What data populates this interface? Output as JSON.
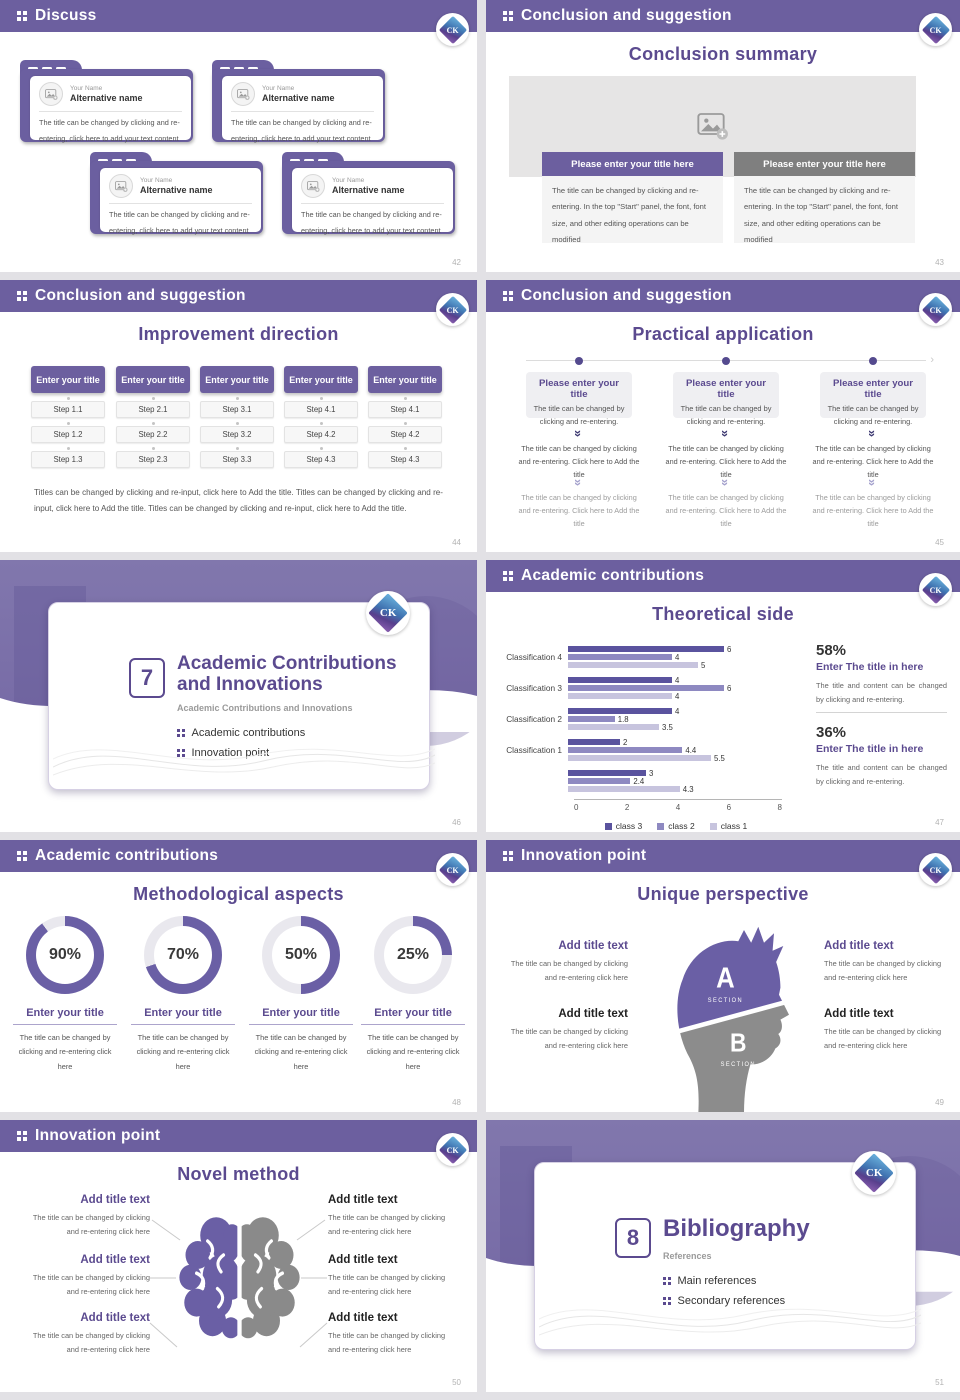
{
  "logo": {
    "text": "CK"
  },
  "colors": {
    "header_bg": "#6c5f9f",
    "accent": "#5b4a8f",
    "gray_bar": "#7f7f7f",
    "bar_class3": "#5a539e",
    "bar_class2": "#8e89c1",
    "bar_class1": "#c7c4de",
    "donut_fill": "#6a5fa5",
    "donut_track": "#e9e8ee"
  },
  "slides": {
    "discuss": {
      "header": "Discuss",
      "page": "42",
      "card": {
        "name_label": "Your Name",
        "alt_name": "Alternative name",
        "body": "The title can be changed by clicking and re-entering, click here to add your text content"
      }
    },
    "conclusion_summary": {
      "header": "Conclusion and suggestion",
      "title": "Conclusion summary",
      "page": "43",
      "bar_title": "Please enter your title here",
      "body": "The title can be changed by clicking and re-entering. In the top \"Start\" panel, the font, font size, and other editing operations can be modified"
    },
    "improvement": {
      "header": "Conclusion and suggestion",
      "title": "Improvement direction",
      "page": "44",
      "col_header": "Enter your title",
      "columns": [
        {
          "steps": [
            "Step 1.1",
            "Step 1.2",
            "Step 1.3"
          ]
        },
        {
          "steps": [
            "Step 2.1",
            "Step 2.2",
            "Step 2.3"
          ]
        },
        {
          "steps": [
            "Step 3.1",
            "Step 3.2",
            "Step 3.3"
          ]
        },
        {
          "steps": [
            "Step 4.1",
            "Step 4.2",
            "Step 4.3"
          ]
        },
        {
          "steps": [
            "Step 4.1",
            "Step 4.2",
            "Step 4.3"
          ]
        }
      ],
      "paragraph": "Titles can be changed by clicking and re-input, click here to Add the title. Titles can be changed by clicking and re-input, click here to Add the title. Titles can be changed by clicking and re-input, click here to Add the title."
    },
    "practical": {
      "header": "Conclusion and suggestion",
      "title": "Practical application",
      "page": "45",
      "box_title": "Please enter your title",
      "box_body": "The title can be changed by clicking and re-entering.",
      "step1": "The title can be changed by clicking and re-entering. Click here to Add the title",
      "step2": "The title can be changed by clicking and re-entering. Click here to Add the title"
    },
    "section7": {
      "number": "7",
      "title_line1": "Academic Contributions",
      "title_line2": "and Innovations",
      "subtitle": "Academic Contributions and Innovations",
      "bullets": [
        "Academic contributions",
        "Innovation point"
      ],
      "page": "46"
    },
    "theoretical": {
      "header": "Academic contributions",
      "title": "Theoretical side",
      "page": "47",
      "stats": [
        {
          "pct": "58%",
          "title": "Enter The title in here",
          "body": "The title and content can be changed by clicking and re-entering."
        },
        {
          "pct": "36%",
          "title": "Enter The title in here",
          "body": "The title and content can be changed by clicking and re-entering."
        }
      ]
    },
    "methodological": {
      "header": "Academic contributions",
      "title": "Methodological aspects",
      "page": "48",
      "percents": [
        "90%",
        "70%",
        "50%",
        "25%"
      ],
      "item_title": "Enter your title",
      "item_body": "The title can be changed by clicking and re-entering click here"
    },
    "unique": {
      "header": "Innovation point",
      "title": "Unique perspective",
      "page": "49",
      "item_title": "Add title text",
      "item_body": "The title can be changed by clicking and re-entering click here",
      "label_a": "A",
      "label_b": "B",
      "section_label": "SECTION"
    },
    "novel": {
      "header": "Innovation point",
      "title": "Novel method",
      "page": "50",
      "item_title": "Add title text",
      "item_body": "The title can be changed by clicking and re-entering click here"
    },
    "section8": {
      "number": "8",
      "title_line1": "Bibliography",
      "subtitle": "References",
      "bullets": [
        "Main references",
        "Secondary references"
      ],
      "page": "51"
    }
  },
  "chart_data": [
    {
      "type": "bar",
      "orientation": "horizontal",
      "title": "Theoretical side",
      "categories": [
        "Classification 4",
        "Classification 3",
        "Classification 2",
        "Classification 1",
        ""
      ],
      "series": [
        {
          "name": "class 3",
          "values": [
            6,
            4,
            4,
            2,
            3
          ]
        },
        {
          "name": "class 2",
          "values": [
            4,
            6,
            1.8,
            4.4,
            2.4
          ]
        },
        {
          "name": "class 1",
          "values": [
            5,
            4,
            3.5,
            5.5,
            4.3
          ]
        }
      ],
      "colors": [
        "#5a539e",
        "#8e89c1",
        "#c7c4de"
      ],
      "xlim": [
        0,
        8
      ],
      "x_ticks": [
        0,
        2,
        4,
        6,
        8
      ],
      "legend_position": "bottom",
      "grid": false,
      "value_labels": true
    },
    {
      "type": "donut",
      "values": [
        90,
        70,
        50,
        25
      ],
      "unit": "%",
      "labels": [
        "Enter your title",
        "Enter your title",
        "Enter your title",
        "Enter your title"
      ]
    }
  ]
}
